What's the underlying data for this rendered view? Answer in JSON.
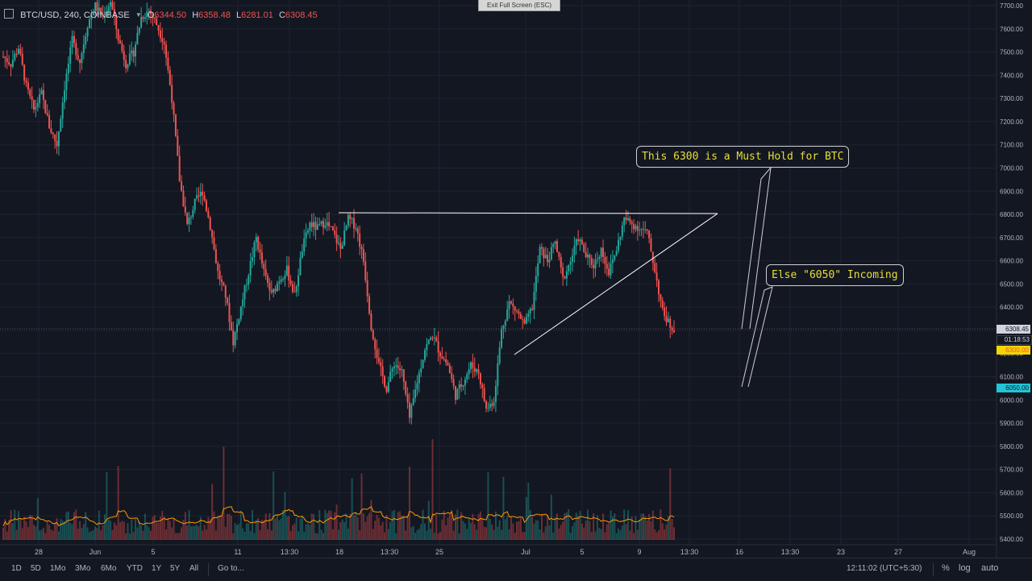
{
  "fullscreen_hint": "Exit Full Screen (ESC)",
  "header": {
    "symbol": "BTC/USD, 240, COINBASE",
    "open_label": "O",
    "open_value": "6344.50",
    "high_label": "H",
    "high_value": "6358.48",
    "low_label": "L",
    "low_value": "6281.01",
    "close_label": "C",
    "close_value": "6308.45"
  },
  "price_axis": {
    "ticks": [
      "7700.00",
      "7600.00",
      "7500.00",
      "7400.00",
      "7300.00",
      "7200.00",
      "7100.00",
      "7000.00",
      "6900.00",
      "6800.00",
      "6700.00",
      "6600.00",
      "6500.00",
      "6400.00",
      "6300.00",
      "6200.00",
      "6100.00",
      "6000.00",
      "5900.00",
      "5800.00",
      "5700.00",
      "5600.00",
      "5500.00",
      "5400.00"
    ],
    "last_price": "6308.45",
    "countdown": "01:18:53",
    "level_a": "6300.00",
    "level_b": "6050.00"
  },
  "time_axis": {
    "ticks": [
      "28",
      "Jun",
      "5",
      "11",
      "13:30",
      "18",
      "13:30",
      "25",
      "Jul",
      "5",
      "9",
      "13:30",
      "16",
      "13:30",
      "23",
      "27",
      "Aug"
    ]
  },
  "annotations": {
    "note1": "This 6300 is a Must Hold for BTC",
    "note2": "Else \"6050\" Incoming"
  },
  "toolbar": {
    "ranges": [
      "1D",
      "5D",
      "1Mo",
      "3Mo",
      "6Mo",
      "YTD",
      "1Y",
      "5Y",
      "All"
    ],
    "goto": "Go to...",
    "clock": "12:11:02 (UTC+5:30)",
    "percent": "%",
    "log": "log",
    "auto": "auto"
  },
  "chart_data": {
    "type": "candlestick",
    "symbol": "BTC/USD",
    "interval": "240",
    "exchange": "COINBASE",
    "y_range": [
      5330,
      7720
    ],
    "close_path": [
      [
        0,
        7480
      ],
      [
        4,
        7450
      ],
      [
        8,
        7520
      ],
      [
        12,
        7350
      ],
      [
        16,
        7250
      ],
      [
        20,
        7320
      ],
      [
        24,
        7180
      ],
      [
        28,
        7100
      ],
      [
        32,
        7350
      ],
      [
        36,
        7550
      ],
      [
        40,
        7460
      ],
      [
        44,
        7620
      ],
      [
        48,
        7700
      ],
      [
        52,
        7650
      ],
      [
        56,
        7720
      ],
      [
        60,
        7560
      ],
      [
        64,
        7450
      ],
      [
        68,
        7500
      ],
      [
        72,
        7650
      ],
      [
        76,
        7680
      ],
      [
        80,
        7620
      ],
      [
        84,
        7540
      ],
      [
        88,
        7300
      ],
      [
        92,
        6950
      ],
      [
        96,
        6750
      ],
      [
        100,
        6850
      ],
      [
        104,
        6900
      ],
      [
        108,
        6750
      ],
      [
        112,
        6550
      ],
      [
        116,
        6450
      ],
      [
        120,
        6250
      ],
      [
        124,
        6400
      ],
      [
        128,
        6550
      ],
      [
        132,
        6700
      ],
      [
        136,
        6550
      ],
      [
        140,
        6450
      ],
      [
        144,
        6520
      ],
      [
        148,
        6560
      ],
      [
        152,
        6450
      ],
      [
        156,
        6650
      ],
      [
        160,
        6760
      ],
      [
        164,
        6740
      ],
      [
        168,
        6770
      ],
      [
        172,
        6720
      ],
      [
        176,
        6650
      ],
      [
        180,
        6780
      ],
      [
        184,
        6750
      ],
      [
        188,
        6600
      ],
      [
        192,
        6320
      ],
      [
        196,
        6150
      ],
      [
        200,
        6050
      ],
      [
        204,
        6160
      ],
      [
        208,
        6120
      ],
      [
        212,
        5920
      ],
      [
        216,
        6080
      ],
      [
        220,
        6220
      ],
      [
        224,
        6280
      ],
      [
        228,
        6200
      ],
      [
        232,
        6150
      ],
      [
        236,
        6020
      ],
      [
        240,
        6080
      ],
      [
        244,
        6150
      ],
      [
        248,
        6120
      ],
      [
        252,
        5960
      ],
      [
        256,
        6000
      ],
      [
        260,
        6300
      ],
      [
        264,
        6420
      ],
      [
        268,
        6380
      ],
      [
        272,
        6320
      ],
      [
        276,
        6400
      ],
      [
        280,
        6650
      ],
      [
        284,
        6600
      ],
      [
        288,
        6680
      ],
      [
        292,
        6520
      ],
      [
        296,
        6600
      ],
      [
        300,
        6700
      ],
      [
        304,
        6620
      ],
      [
        308,
        6580
      ],
      [
        312,
        6650
      ],
      [
        316,
        6550
      ],
      [
        320,
        6650
      ],
      [
        324,
        6780
      ],
      [
        328,
        6760
      ],
      [
        332,
        6740
      ],
      [
        336,
        6720
      ],
      [
        340,
        6560
      ],
      [
        344,
        6380
      ],
      [
        348,
        6320
      ],
      [
        350,
        6308
      ]
    ],
    "triangle_resistance": 6800,
    "volume_avg_color": "#ff9800",
    "up_color": "#26a69a",
    "down_color": "#ef5350"
  },
  "colors": {
    "background": "#131722",
    "grid": "#1f2330",
    "level_a_bg": "#f5d400",
    "level_b_bg": "#22c4d6"
  }
}
